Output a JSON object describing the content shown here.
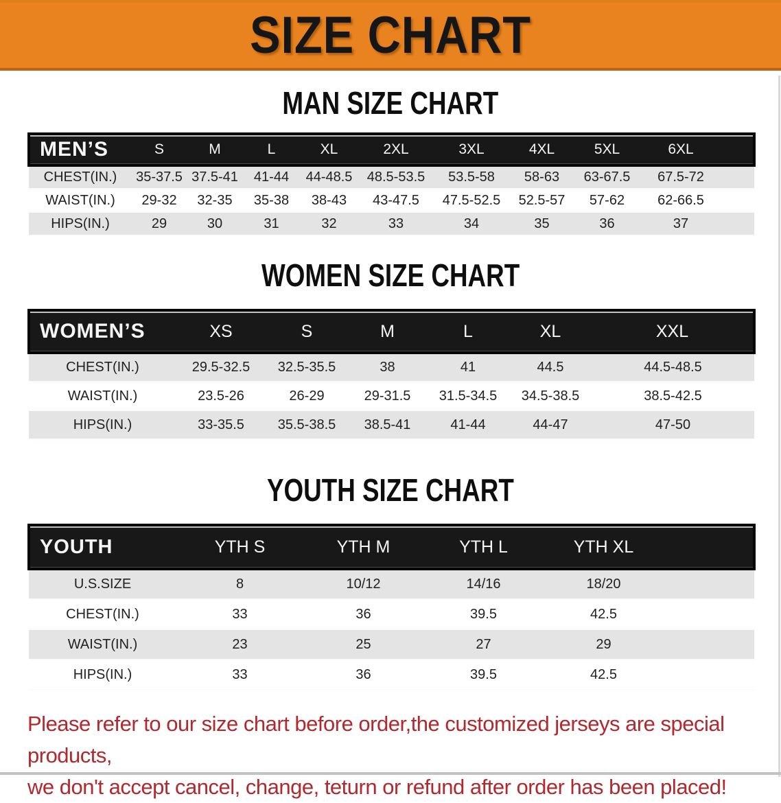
{
  "banner": {
    "title": "SIZE CHART",
    "bg_color": "#e8831f"
  },
  "colors": {
    "header_bar": "#181818",
    "row_gray": "#e4e4e4",
    "row_white": "#ffffff",
    "notice_red": "#b2282c"
  },
  "sections": [
    {
      "title": "MAN SIZE CHART",
      "header_label": "MEN’S",
      "columns": [
        "S",
        "M",
        "L",
        "XL",
        "2XL",
        "3XL",
        "4XL",
        "5XL",
        "6XL"
      ],
      "rows": [
        {
          "label": "CHEST(IN.)",
          "values": [
            "35-37.5",
            "37.5-41",
            "41-44",
            "44-48.5",
            "48.5-53.5",
            "53.5-58",
            "58-63",
            "63-67.5",
            "67.5-72"
          ]
        },
        {
          "label": "WAIST(IN.)",
          "values": [
            "29-32",
            "32-35",
            "35-38",
            "38-43",
            "43-47.5",
            "47.5-52.5",
            "52.5-57",
            "57-62",
            "62-66.5"
          ]
        },
        {
          "label": "HIPS(IN.)",
          "values": [
            "29",
            "30",
            "31",
            "32",
            "33",
            "34",
            "35",
            "36",
            "37"
          ]
        }
      ]
    },
    {
      "title": "WOMEN SIZE CHART",
      "header_label": "WOMEN’S",
      "columns": [
        "XS",
        "S",
        "M",
        "L",
        "XL",
        "XXL"
      ],
      "rows": [
        {
          "label": "CHEST(IN.)",
          "values": [
            "29.5-32.5",
            "32.5-35.5",
            "38",
            "41",
            "44.5",
            "44.5-48.5"
          ]
        },
        {
          "label": "WAIST(IN.)",
          "values": [
            "23.5-26",
            "26-29",
            "29-31.5",
            "31.5-34.5",
            "34.5-38.5",
            "38.5-42.5"
          ]
        },
        {
          "label": "HIPS(IN.)",
          "values": [
            "33-35.5",
            "35.5-38.5",
            "38.5-41",
            "41-44",
            "44-47",
            "47-50"
          ]
        }
      ]
    },
    {
      "title": "YOUTH SIZE CHART",
      "header_label": "YOUTH",
      "columns": [
        "YTH S",
        "YTH M",
        "YTH L",
        "YTH XL"
      ],
      "rows": [
        {
          "label": "U.S.SIZE",
          "values": [
            "8",
            "10/12",
            "14/16",
            "18/20"
          ]
        },
        {
          "label": "CHEST(IN.)",
          "values": [
            "33",
            "36",
            "39.5",
            "42.5"
          ]
        },
        {
          "label": "WAIST(IN.)",
          "values": [
            "23",
            "25",
            "27",
            "29"
          ]
        },
        {
          "label": "HIPS(IN.)",
          "values": [
            "33",
            "36",
            "39.5",
            "42.5"
          ]
        }
      ]
    }
  ],
  "footer": {
    "line1": "Please refer to our size chart before order,the customized jerseys are special products,",
    "line2": "we don't accept cancel, change, teturn or refund after order has been placed!"
  }
}
